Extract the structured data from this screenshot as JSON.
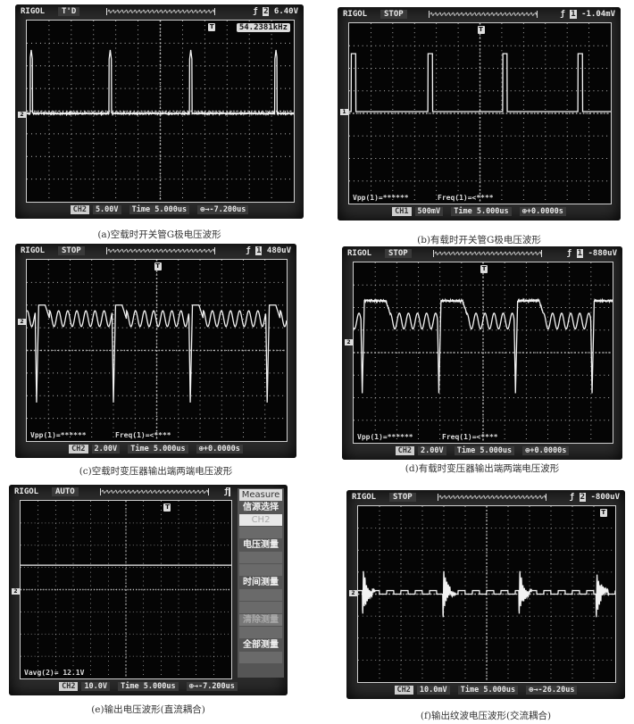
{
  "colors": {
    "screen": "#050505",
    "trace": "#f2f2f2",
    "grid": "#bdbdbd",
    "bezel": "#2b2b2b"
  },
  "panels": [
    {
      "id": "a",
      "brand": "RIGOL",
      "status": "T'D",
      "trigger_icon": "rising-edge-icon",
      "trigger_channel": "2",
      "trigger_level": "6.40V",
      "freq_readout": "54.2381kHz",
      "channel_tag": "CH2",
      "ch_scale": "5.00V",
      "time_label": "Time",
      "time_scale": "5.000us",
      "offset": "→-7.200us",
      "ground_marker": "2",
      "trigger_marker": "T",
      "measurements": [],
      "waveform": "gate-spikes",
      "caption": "(a)空载时开关管G极电压波形"
    },
    {
      "id": "b",
      "brand": "RIGOL",
      "status": "STOP",
      "trigger_icon": "rising-edge-icon",
      "trigger_channel": "1",
      "trigger_level": "-1.04mV",
      "freq_readout": "",
      "channel_tag": "CH1",
      "ch_scale": "500mV",
      "time_label": "Time",
      "time_scale": "5.000us",
      "offset": "+0.0000s",
      "ground_marker": "1",
      "trigger_marker": "T",
      "measurements": [
        "Vpp(1)=******",
        "Freq(1)=<****"
      ],
      "waveform": "gate-pulses",
      "caption": "(b)有载时开关管G极电压波形"
    },
    {
      "id": "c",
      "brand": "RIGOL",
      "status": "STOP",
      "trigger_icon": "rising-edge-icon",
      "trigger_channel": "1",
      "trigger_level": "480uV",
      "freq_readout": "",
      "channel_tag": "CH2",
      "ch_scale": "2.00V",
      "time_label": "Time",
      "time_scale": "5.000us",
      "offset": "+0.0000s",
      "ground_marker": "2",
      "trigger_marker": "T",
      "measurements": [
        "Vpp(1)=******",
        "Freq(1)=<****"
      ],
      "waveform": "transformer-noload",
      "caption": "(c)空载时变压器输出端两端电压波形"
    },
    {
      "id": "d",
      "brand": "RIGOL",
      "status": "STOP",
      "trigger_icon": "rising-edge-icon",
      "trigger_channel": "1",
      "trigger_level": "-880uV",
      "freq_readout": "",
      "channel_tag": "CH2",
      "ch_scale": "2.00V",
      "time_label": "Time",
      "time_scale": "5.000us",
      "offset": "+0.0000s",
      "ground_marker": "2",
      "trigger_marker": "T",
      "measurements": [
        "Vpp(1)=******",
        "Freq(1)=<****"
      ],
      "waveform": "transformer-load",
      "caption": "(d)有载时变压器输出端两端电压波形"
    },
    {
      "id": "e",
      "brand": "RIGOL",
      "status": "AUTO",
      "trigger_icon": "rising-edge-icon",
      "trigger_channel": "",
      "trigger_level": "",
      "freq_readout": "",
      "channel_tag": "CH2",
      "ch_scale": "10.0V",
      "time_label": "Time",
      "time_scale": "5.000us",
      "offset": "→-7.200us",
      "ground_marker": "2",
      "trigger_marker": "T",
      "measurements": [
        "Vavg(2)= 12.1V"
      ],
      "waveform": "dc-output",
      "menu": {
        "title": "Measure",
        "items": [
          "信源选择",
          "CH2",
          "",
          "电压测量",
          "",
          "",
          "时间测量",
          "",
          "",
          "清除测量",
          "",
          "全部测量",
          ""
        ]
      },
      "caption": "(e)输出电压波形(直流耦合)"
    },
    {
      "id": "f",
      "brand": "RIGOL",
      "status": "STOP",
      "trigger_icon": "rising-edge-icon",
      "trigger_channel": "2",
      "trigger_level": "-800uV",
      "freq_readout": "",
      "channel_tag": "CH2",
      "ch_scale": "10.0mV",
      "time_label": "Time",
      "time_scale": "5.000us",
      "offset": "→-26.20us",
      "ground_marker": "2",
      "trigger_marker": "T",
      "measurements": [],
      "waveform": "ripple",
      "caption": "(f)输出纹波电压波形(交流耦合)"
    }
  ]
}
